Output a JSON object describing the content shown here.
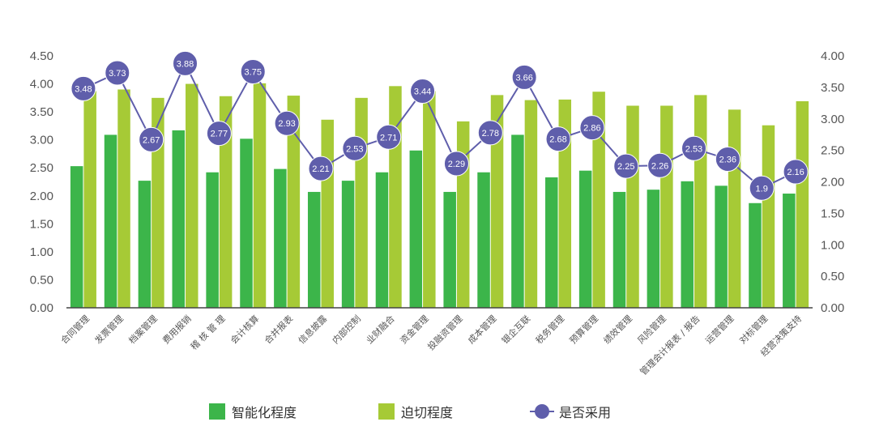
{
  "chart_data": {
    "type": "bar",
    "categories": [
      "合同管理",
      "发票管理",
      "档案管理",
      "费用报销",
      "稽 核 管 理",
      "会计核算",
      "合并报表",
      "信息披露",
      "内部控制",
      "业财融合",
      "资金管理",
      "投融资管理",
      "成本管理",
      "银企互联",
      "税务管理",
      "预算管理",
      "绩效管理",
      "风险管理",
      "管理会计报表 / 报告",
      "运营管理",
      "对标管理",
      "经营决策支持"
    ],
    "series": [
      {
        "name": "智能化程度",
        "kind": "bar",
        "axis": "left",
        "color": "#3cb54a",
        "values": [
          2.53,
          3.09,
          2.27,
          3.17,
          2.42,
          3.02,
          2.48,
          2.07,
          2.27,
          2.42,
          2.81,
          2.07,
          2.42,
          3.09,
          2.33,
          2.45,
          2.07,
          2.11,
          2.26,
          2.18,
          1.87,
          2.04
        ]
      },
      {
        "name": "迫切程度",
        "kind": "bar",
        "axis": "left",
        "color": "#a6ca36",
        "values": [
          3.87,
          3.9,
          3.75,
          4.0,
          3.78,
          4.01,
          3.79,
          3.36,
          3.75,
          3.96,
          3.87,
          3.33,
          3.8,
          3.71,
          3.72,
          3.86,
          3.61,
          3.61,
          3.8,
          3.54,
          3.26,
          3.69
        ]
      },
      {
        "name": "是否采用",
        "kind": "line",
        "axis": "right",
        "color": "#5f5eab",
        "values": [
          3.48,
          3.73,
          2.67,
          3.88,
          2.77,
          3.75,
          2.93,
          2.21,
          2.53,
          2.71,
          3.44,
          2.29,
          2.78,
          3.66,
          2.68,
          2.86,
          2.25,
          2.26,
          2.53,
          2.36,
          1.9,
          2.16
        ]
      }
    ],
    "y_left": {
      "min": 0,
      "max": 4.5,
      "step": 0.5,
      "ticks": [
        "0.00",
        "0.50",
        "1.00",
        "1.50",
        "2.00",
        "2.50",
        "3.00",
        "3.50",
        "4.00",
        "4.50"
      ]
    },
    "y_right": {
      "min": 0,
      "max": 4.0,
      "step": 0.5,
      "ticks": [
        "0.00",
        "0.50",
        "1.00",
        "1.50",
        "2.00",
        "2.50",
        "3.00",
        "3.50",
        "4.00"
      ]
    },
    "data_labels": [
      "3.48",
      "3.73",
      "2.67",
      "3.88",
      "2.77",
      "3.75",
      "2.93",
      "2.21",
      "2.53",
      "2.71",
      "3.44",
      "2.29",
      "2.78",
      "3.66",
      "2.68",
      "2.86",
      "2.25",
      "2.26",
      "2.53",
      "2.36",
      "1.9",
      "2.16"
    ],
    "title": "",
    "xlabel": "",
    "ylabel": "",
    "grid": false,
    "legend_position": "bottom"
  },
  "legend": [
    {
      "label": "智能化程度",
      "color": "#3cb54a",
      "kind": "bar"
    },
    {
      "label": "迫切程度",
      "color": "#a6ca36",
      "kind": "bar"
    },
    {
      "label": "是否采用",
      "color": "#5f5eab",
      "kind": "line"
    }
  ]
}
